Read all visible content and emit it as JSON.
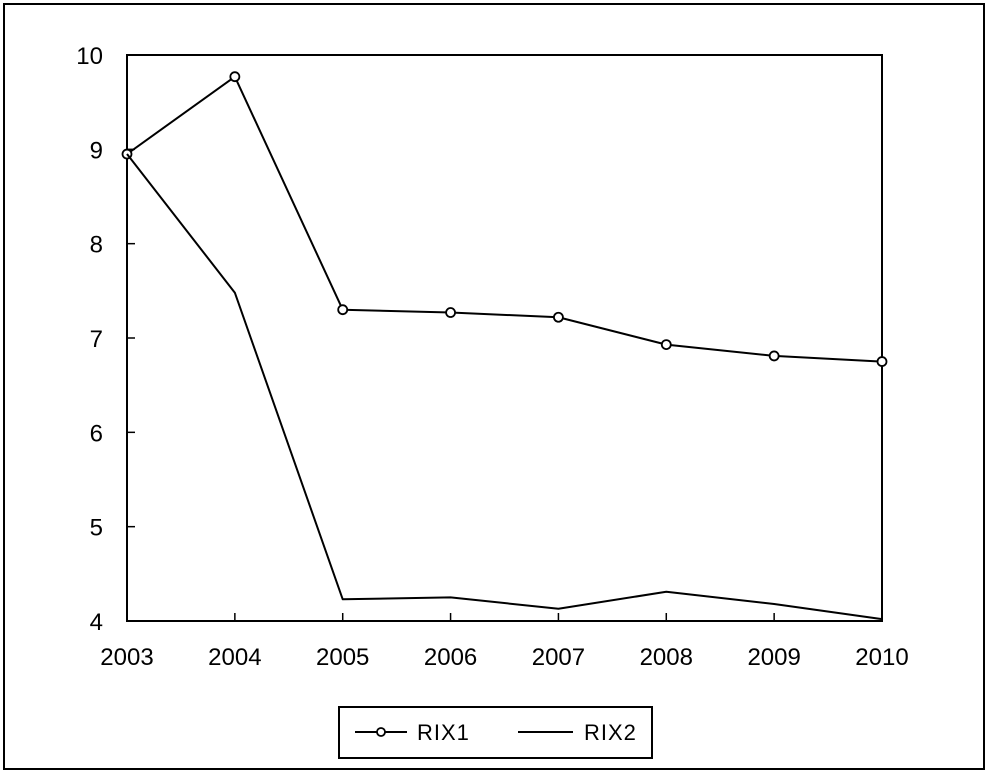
{
  "chart_data": {
    "type": "line",
    "title": "",
    "xlabel": "",
    "ylabel": "",
    "x": [
      2003,
      2004,
      2005,
      2006,
      2007,
      2008,
      2009,
      2010
    ],
    "xlim": [
      2003,
      2010
    ],
    "ylim": [
      4,
      10
    ],
    "x_ticks": [
      "2003",
      "2004",
      "2005",
      "2006",
      "2007",
      "2008",
      "2009",
      "2010"
    ],
    "y_ticks": [
      "4",
      "5",
      "6",
      "7",
      "8",
      "9",
      "10"
    ],
    "grid": false,
    "legend_position": "bottom",
    "series": [
      {
        "name": "RIX1",
        "marker": "circle",
        "color": "#000000",
        "values": [
          8.95,
          9.77,
          7.3,
          7.27,
          7.22,
          6.93,
          6.81,
          6.75
        ]
      },
      {
        "name": "RIX2",
        "marker": "none",
        "color": "#000000",
        "values": [
          8.95,
          7.48,
          4.23,
          4.25,
          4.13,
          4.31,
          4.18,
          4.02
        ]
      }
    ]
  }
}
